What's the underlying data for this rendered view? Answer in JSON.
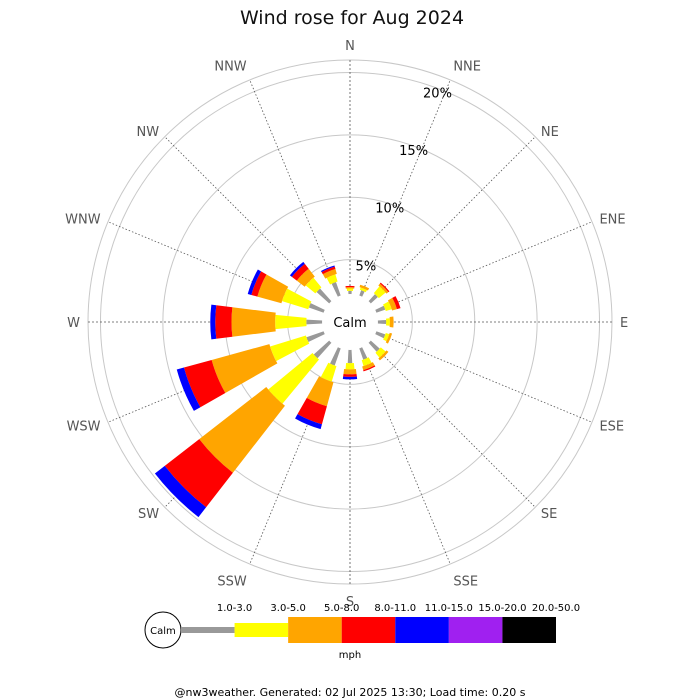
{
  "chart_data": {
    "type": "wind-rose",
    "title": "Wind rose for Aug 2024",
    "directions": [
      "N",
      "NNE",
      "NE",
      "ENE",
      "E",
      "ESE",
      "SE",
      "SSE",
      "S",
      "SSW",
      "SW",
      "WSW",
      "W",
      "WNW",
      "NW",
      "NNW"
    ],
    "radial_ticks": [
      "5%",
      "10%",
      "15%",
      "20%"
    ],
    "radial_max_percent": 21,
    "grid": true,
    "calm_label": "Calm",
    "calm_radius_percent": 2.2,
    "unit_label": "mph",
    "bins": [
      {
        "label": "1.0-3.0",
        "color": "#999999"
      },
      {
        "label": "3.0-5.0",
        "color": "#ffff00"
      },
      {
        "label": "5.0-8.0",
        "color": "#ffa500"
      },
      {
        "label": "8.0-11.0",
        "color": "#ff0000"
      },
      {
        "label": "11.0-15.0",
        "color": "#0000ff"
      },
      {
        "label": "15.0-20.0",
        "color": "#a020f0"
      },
      {
        "label": "20.0-50.0",
        "color": "#000000"
      }
    ],
    "series_percent_by_direction": {
      "N": [
        0.3,
        0.2,
        0.1,
        0.1,
        0.0,
        0,
        0
      ],
      "NNE": [
        0.5,
        0.2,
        0.2,
        0.0,
        0.0,
        0,
        0
      ],
      "NE": [
        0.8,
        0.7,
        0.2,
        0.1,
        0.0,
        0,
        0
      ],
      "ENE": [
        0.8,
        0.5,
        0.4,
        0.3,
        0.0,
        0,
        0
      ],
      "E": [
        0.7,
        0.3,
        0.3,
        0.0,
        0.0,
        0,
        0
      ],
      "ESE": [
        0.8,
        0.3,
        0.2,
        0.0,
        0.0,
        0,
        0
      ],
      "SE": [
        1.0,
        0.5,
        0.2,
        0.0,
        0.0,
        0,
        0
      ],
      "SSE": [
        1.0,
        0.5,
        0.3,
        0.1,
        0.0,
        0,
        0
      ],
      "S": [
        1.1,
        0.5,
        0.4,
        0.2,
        0.2,
        0,
        0
      ],
      "SSW": [
        1.5,
        1.3,
        2.0,
        1.5,
        0.4,
        0,
        0
      ],
      "SW": [
        1.7,
        4.6,
        6.8,
        3.5,
        1.0,
        0,
        0
      ],
      "WSW": [
        1.5,
        3.0,
        4.8,
        2.3,
        0.6,
        0,
        0
      ],
      "W": [
        1.3,
        2.5,
        3.5,
        1.3,
        0.4,
        0,
        0
      ],
      "WNW": [
        1.3,
        2.2,
        2.0,
        0.5,
        0.3,
        0,
        0
      ],
      "NW": [
        1.4,
        1.0,
        0.8,
        0.5,
        0.2,
        0,
        0
      ],
      "NNW": [
        1.2,
        0.6,
        0.4,
        0.2,
        0.1,
        0,
        0
      ]
    }
  },
  "footer_text": "@nw3weather. Generated: 02 Jul 2025 13:30; Load time: 0.20 s"
}
